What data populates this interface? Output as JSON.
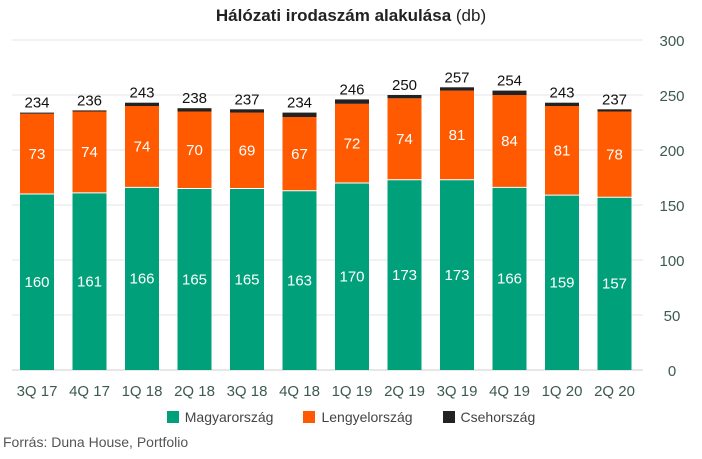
{
  "title": {
    "main": "Hálózati irodaszám alakulása",
    "unit": "(db)"
  },
  "source": "Forrás: Duna House, Portfolio",
  "colors": {
    "Magyarország": "#00a07a",
    "Lengyelország": "#ff5a00",
    "Csehország": "#222222",
    "grid": "#e6e6e6",
    "axis_label": "#3d5a50",
    "x_label": "#3d5a50"
  },
  "chart_data": {
    "type": "bar",
    "stacked": true,
    "title": "Hálózati irodaszám alakulása (db)",
    "categories": [
      "3Q 17",
      "4Q 17",
      "1Q 18",
      "2Q 18",
      "3Q 18",
      "4Q 18",
      "1Q 19",
      "2Q 19",
      "3Q 19",
      "4Q 19",
      "1Q 20",
      "2Q 20"
    ],
    "series": [
      {
        "name": "Magyarország",
        "values": [
          160,
          161,
          166,
          165,
          165,
          163,
          170,
          173,
          173,
          166,
          159,
          157
        ]
      },
      {
        "name": "Lengyelország",
        "values": [
          73,
          74,
          74,
          70,
          69,
          67,
          72,
          74,
          81,
          84,
          81,
          78
        ]
      },
      {
        "name": "Csehország",
        "values": [
          1,
          1,
          3,
          3,
          3,
          4,
          4,
          3,
          3,
          4,
          3,
          2
        ]
      }
    ],
    "totals": [
      234,
      236,
      243,
      238,
      237,
      234,
      246,
      250,
      257,
      254,
      243,
      237
    ],
    "yticks": [
      "0",
      "50",
      "100",
      "150",
      "200",
      "250",
      "300"
    ],
    "ylim": [
      0,
      300
    ],
    "y_axis_side": "right",
    "grid": true,
    "legend_position": "bottom"
  }
}
